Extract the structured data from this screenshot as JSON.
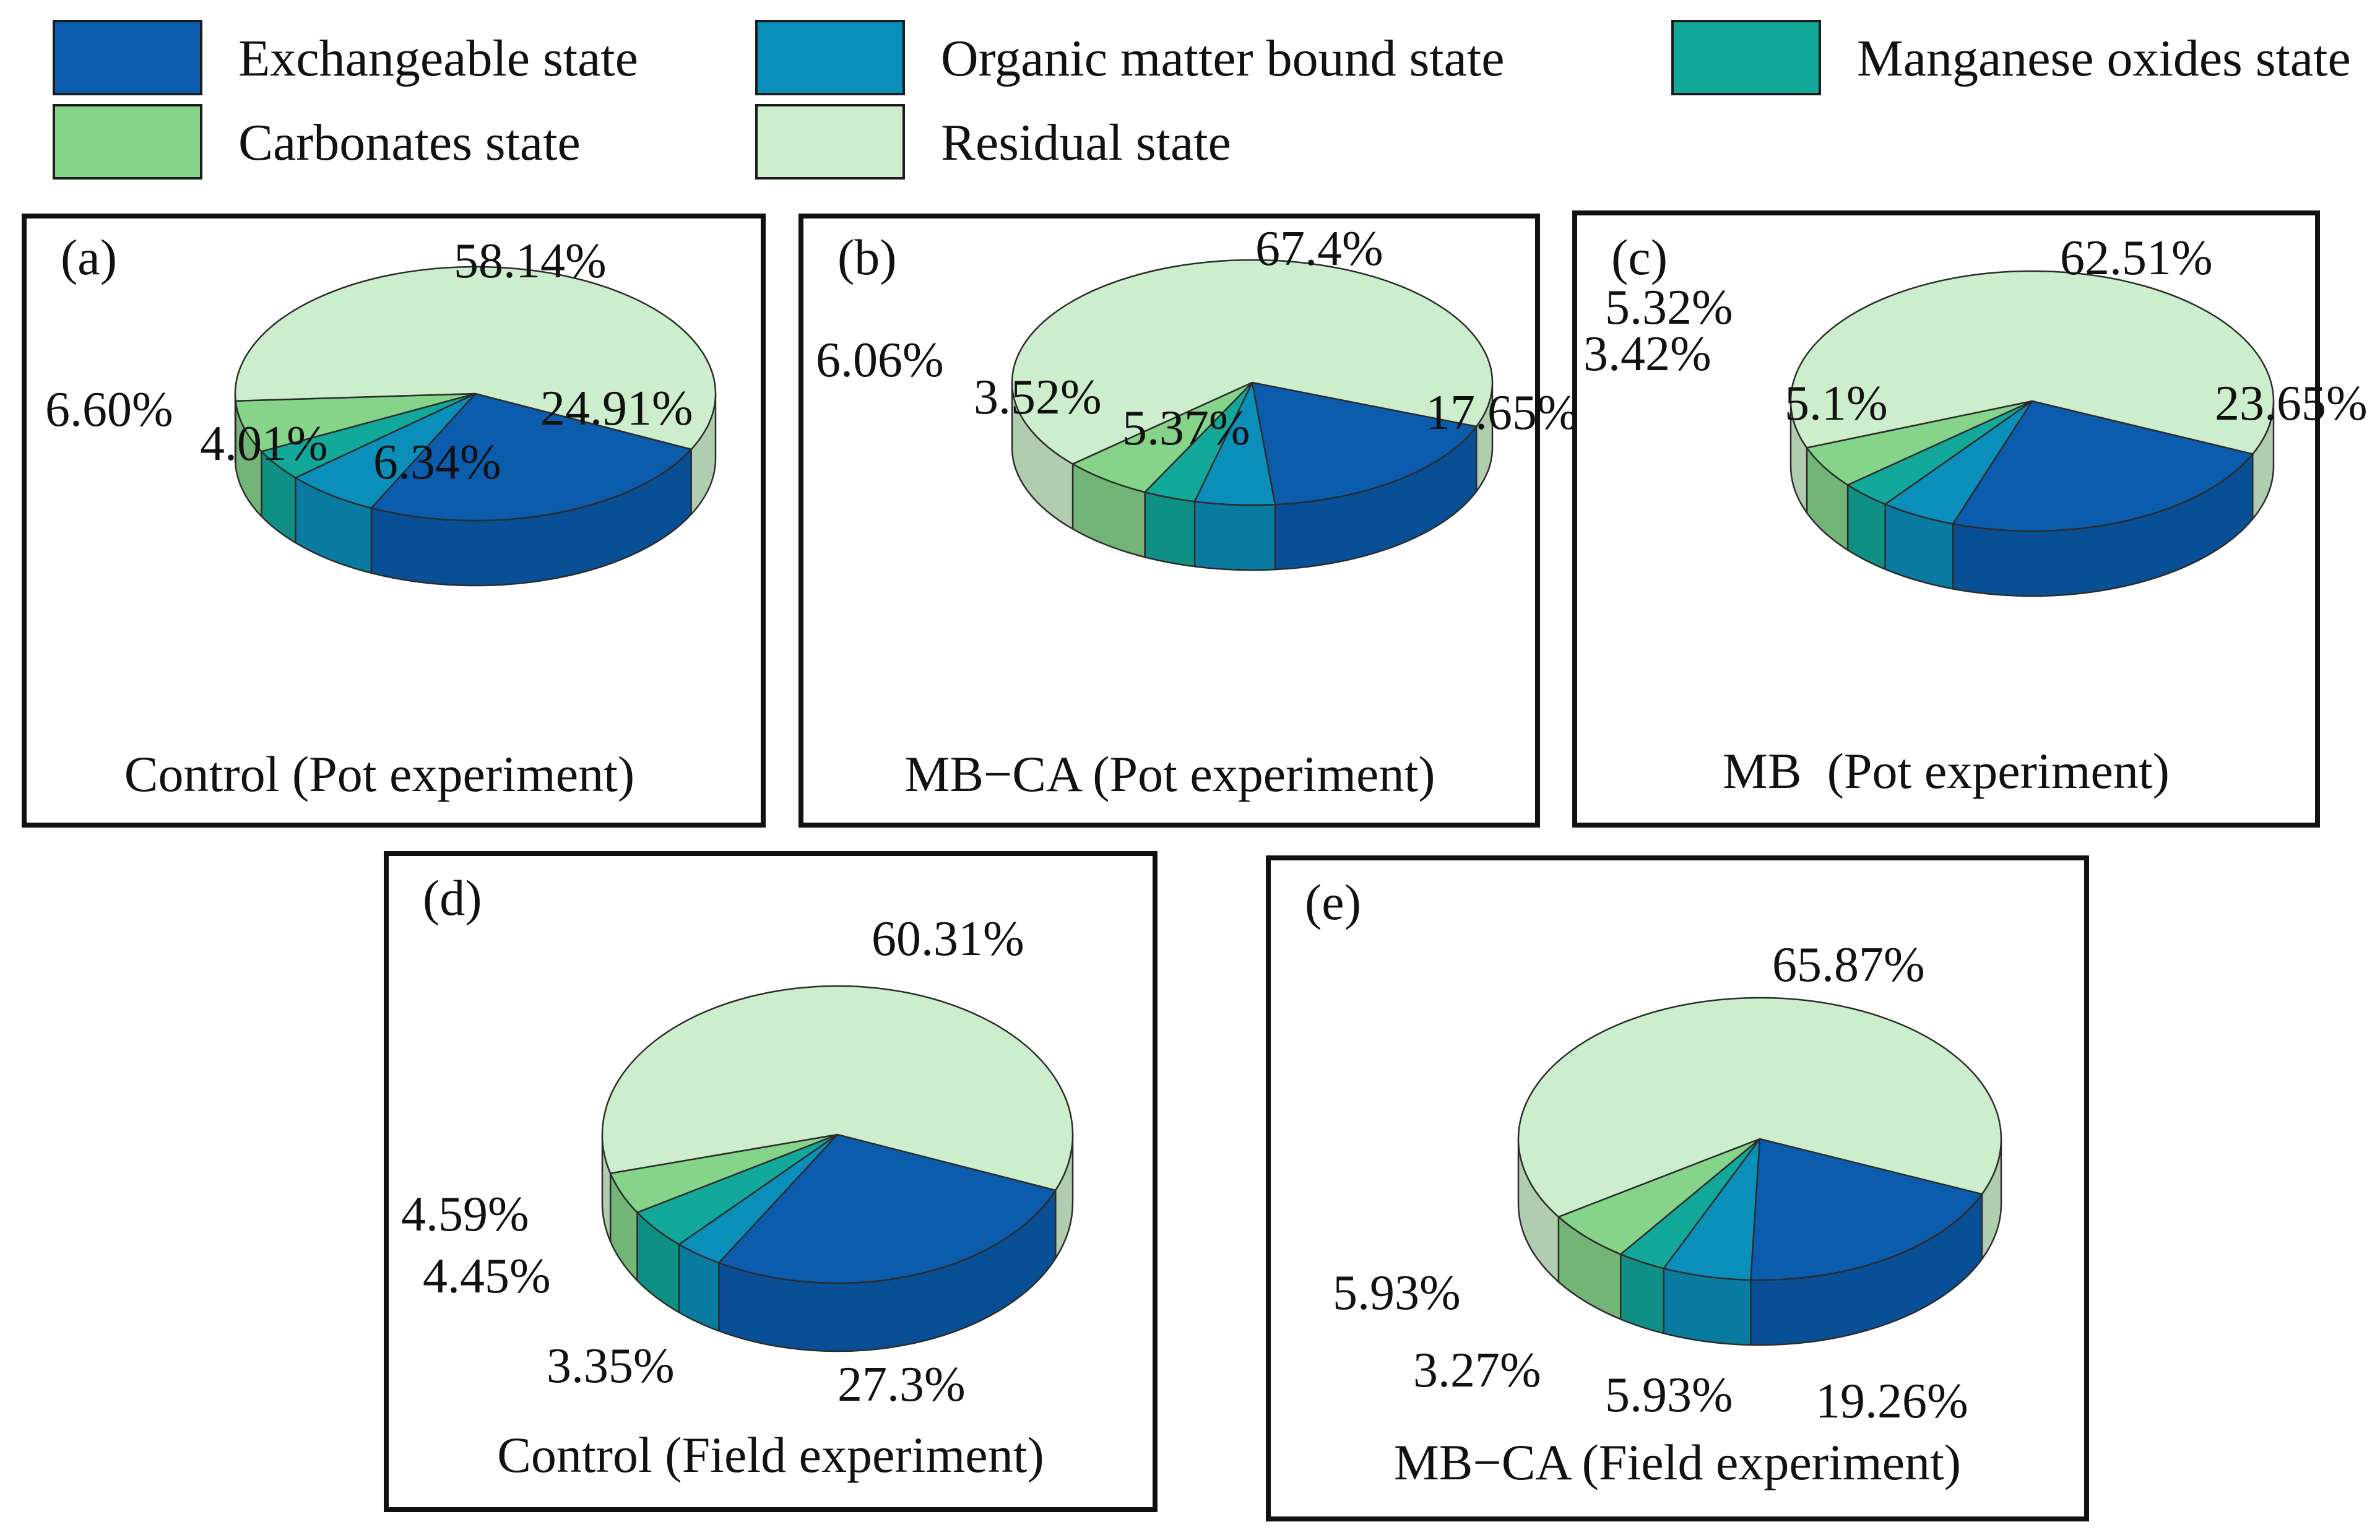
{
  "legend": [
    {
      "label": "Exchangeable state",
      "color": "#0b5cad"
    },
    {
      "label": "Organic matter bound state",
      "color": "#0a8fbb"
    },
    {
      "label": "Manganese oxides state",
      "color": "#12a89a"
    },
    {
      "label": "Carbonates state",
      "color": "#86d38a"
    },
    {
      "label": "Residual state",
      "color": "#cdeecd"
    }
  ],
  "chart_data": [
    {
      "type": "pie",
      "panel_label": "(a)",
      "title": "Control (Pot experiment)",
      "categories": [
        "Exchangeable state",
        "Organic matter bound state",
        "Manganese oxides state",
        "Carbonates state",
        "Residual state"
      ],
      "values": [
        24.91,
        6.34,
        4.01,
        6.6,
        58.14
      ],
      "value_labels": [
        "24.91%",
        "6.34%",
        "4.01%",
        "6.60%",
        "58.14%"
      ]
    },
    {
      "type": "pie",
      "panel_label": "(b)",
      "title": "MB−CA (Pot experiment)",
      "categories": [
        "Exchangeable state",
        "Organic matter bound state",
        "Manganese oxides state",
        "Carbonates state",
        "Residual state"
      ],
      "values": [
        17.65,
        5.37,
        3.52,
        6.06,
        67.4
      ],
      "value_labels": [
        "17.65%",
        "5.37%",
        "3.52%",
        "6.06%",
        "67.4%"
      ]
    },
    {
      "type": "pie",
      "panel_label": "(c)",
      "title": "MB  (Pot experiment)",
      "categories": [
        "Exchangeable state",
        "Organic matter bound state",
        "Manganese oxides state",
        "Carbonates state",
        "Residual state"
      ],
      "values": [
        23.65,
        5.1,
        3.42,
        5.32,
        62.51
      ],
      "value_labels": [
        "23.65%",
        "5.1%",
        "3.42%",
        "5.32%",
        "62.51%"
      ]
    },
    {
      "type": "pie",
      "panel_label": "(d)",
      "title": "Control (Field experiment)",
      "categories": [
        "Exchangeable state",
        "Organic matter bound state",
        "Manganese oxides state",
        "Carbonates state",
        "Residual state"
      ],
      "values": [
        27.3,
        3.35,
        4.45,
        4.59,
        60.31
      ],
      "value_labels": [
        "27.3%",
        "3.35%",
        "4.45%",
        "4.59%",
        "60.31%"
      ]
    },
    {
      "type": "pie",
      "panel_label": "(e)",
      "title": "MB−CA (Field experiment)",
      "categories": [
        "Exchangeable state",
        "Organic matter bound state",
        "Manganese oxides state",
        "Carbonates state",
        "Residual state"
      ],
      "values": [
        19.26,
        5.93,
        3.27,
        5.93,
        65.87
      ],
      "value_labels": [
        "19.26%",
        "5.93%",
        "3.27%",
        "5.93%",
        "65.87%"
      ]
    }
  ]
}
